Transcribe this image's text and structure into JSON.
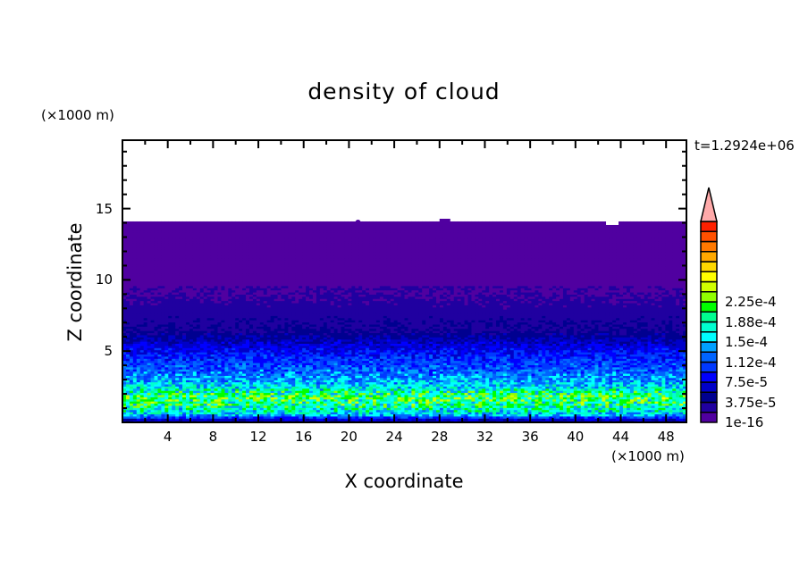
{
  "chart_data": {
    "type": "heatmap",
    "subtype": "filled-contour",
    "title": "density of cloud",
    "xlabel": "X coordinate",
    "ylabel": "Z coordinate",
    "x_unit": "(×1000 m)",
    "y_unit": "(×1000 m)",
    "time_label": "t=1.2924e+06",
    "xlim": [
      0,
      49.8
    ],
    "ylim": [
      0,
      19.8
    ],
    "x_ticks": [
      4,
      8,
      12,
      16,
      20,
      24,
      28,
      32,
      36,
      40,
      44,
      48
    ],
    "y_ticks": [
      5,
      10,
      15
    ],
    "cloud_top_z": 14.1,
    "mean_profile": {
      "z": [
        0.2,
        0.6,
        1.2,
        1.8,
        2.5,
        3.2,
        4.0,
        4.8,
        5.6,
        6.5,
        7.5,
        8.5,
        9.5,
        12,
        14
      ],
      "density": [
        6e-05,
        0.00016,
        0.00019,
        0.00021,
        0.00016,
        0.00013,
        0.00011,
        9e-05,
        6.5e-05,
        3.8e-05,
        3e-05,
        2.2e-05,
        1.5e-05,
        5e-06,
        5e-06
      ]
    },
    "colorbar": {
      "labels": [
        "1e-16",
        "3.75e-5",
        "7.5e-5",
        "1.12e-4",
        "1.5e-4",
        "1.88e-4",
        "2.25e-4"
      ],
      "level_step": 1.875e-05,
      "extend": "max",
      "colors": [
        "#5000a0",
        "#2000a0",
        "#000090",
        "#0000c8",
        "#0000ff",
        "#0038ff",
        "#0064ff",
        "#00a0ff",
        "#00ffff",
        "#00ffd0",
        "#00ff90",
        "#00ff00",
        "#90ff00",
        "#d0ff00",
        "#ffff00",
        "#ffd800",
        "#ffa800",
        "#ff7800",
        "#ff5000",
        "#ff2000"
      ],
      "over_color": "#ffaaaa"
    },
    "grid": false
  }
}
